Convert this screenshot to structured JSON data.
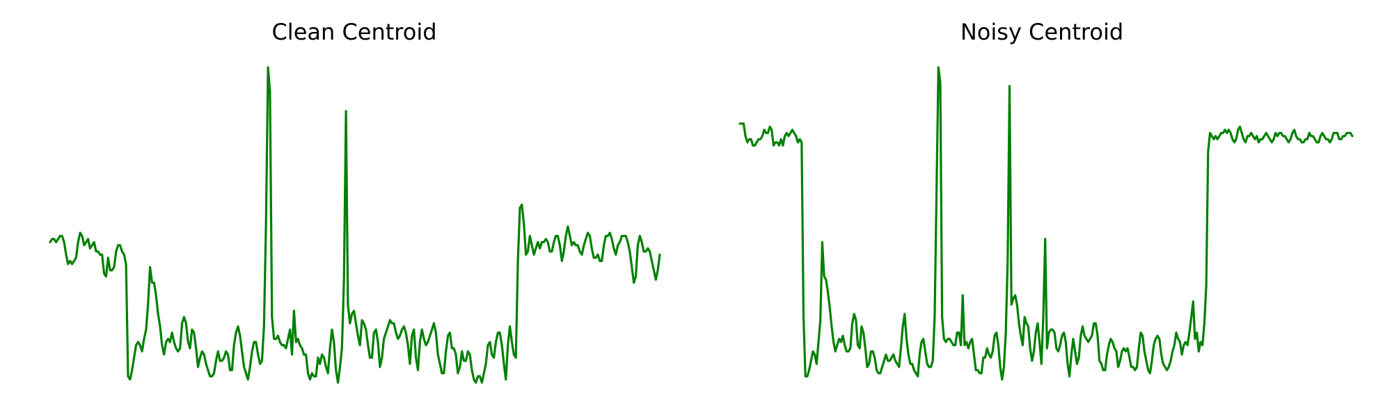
{
  "chart_data": [
    {
      "type": "line",
      "title": "Clean Centroid",
      "axes_visible": false,
      "grid": false,
      "color": "#008000",
      "ylim": [
        0,
        1
      ],
      "y": [
        0.44,
        0.45,
        0.45,
        0.44,
        0.45,
        0.46,
        0.46,
        0.44,
        0.4,
        0.37,
        0.38,
        0.37,
        0.38,
        0.39,
        0.44,
        0.47,
        0.46,
        0.43,
        0.44,
        0.45,
        0.42,
        0.43,
        0.44,
        0.41,
        0.41,
        0.4,
        0.4,
        0.34,
        0.33,
        0.39,
        0.35,
        0.35,
        0.36,
        0.41,
        0.43,
        0.43,
        0.41,
        0.4,
        0.37,
        0.01,
        0.0,
        0.03,
        0.07,
        0.11,
        0.12,
        0.11,
        0.09,
        0.13,
        0.16,
        0.24,
        0.36,
        0.31,
        0.31,
        0.27,
        0.21,
        0.17,
        0.11,
        0.08,
        0.12,
        0.13,
        0.12,
        0.15,
        0.12,
        0.1,
        0.09,
        0.1,
        0.18,
        0.2,
        0.18,
        0.12,
        0.1,
        0.16,
        0.15,
        0.1,
        0.04,
        0.07,
        0.09,
        0.08,
        0.05,
        0.03,
        0.01,
        0.01,
        0.02,
        0.06,
        0.09,
        0.06,
        0.06,
        0.07,
        0.09,
        0.08,
        0.03,
        0.03,
        0.11,
        0.15,
        0.17,
        0.14,
        0.09,
        0.04,
        0.02,
        0.0,
        0.04,
        0.09,
        0.12,
        0.12,
        0.08,
        0.05,
        0.06,
        0.17,
        0.5,
        1.0,
        0.92,
        0.2,
        0.13,
        0.13,
        0.14,
        0.12,
        0.11,
        0.11,
        0.1,
        0.13,
        0.16,
        0.08,
        0.22,
        0.12,
        0.13,
        0.11,
        0.1,
        0.08,
        0.08,
        0.02,
        0.0,
        0.02,
        0.01,
        0.01,
        0.07,
        0.05,
        0.08,
        0.07,
        0.04,
        0.02,
        0.1,
        0.16,
        0.12,
        0.03,
        -0.01,
        0.04,
        0.1,
        0.32,
        0.86,
        0.24,
        0.18,
        0.21,
        0.22,
        0.18,
        0.14,
        0.11,
        0.19,
        0.18,
        0.16,
        0.11,
        0.07,
        0.07,
        0.15,
        0.16,
        0.12,
        0.04,
        0.07,
        0.13,
        0.15,
        0.17,
        0.19,
        0.18,
        0.18,
        0.15,
        0.13,
        0.14,
        0.16,
        0.17,
        0.15,
        0.11,
        0.05,
        0.14,
        0.16,
        0.07,
        0.03,
        0.12,
        0.16,
        0.13,
        0.11,
        0.12,
        0.14,
        0.16,
        0.18,
        0.15,
        0.08,
        0.05,
        0.02,
        0.02,
        0.09,
        0.14,
        0.15,
        0.1,
        0.1,
        0.08,
        0.02,
        0.04,
        0.09,
        0.06,
        0.06,
        0.09,
        0.08,
        0.03,
        0.0,
        -0.01,
        0.01,
        0.01,
        -0.01,
        0.02,
        0.05,
        0.11,
        0.12,
        0.08,
        0.07,
        0.12,
        0.15,
        0.15,
        0.11,
        0.05,
        0.0,
        0.11,
        0.17,
        0.12,
        0.08,
        0.07,
        0.38,
        0.55,
        0.56,
        0.5,
        0.4,
        0.41,
        0.46,
        0.43,
        0.4,
        0.42,
        0.44,
        0.42,
        0.44,
        0.44,
        0.45,
        0.44,
        0.41,
        0.41,
        0.44,
        0.46,
        0.46,
        0.43,
        0.38,
        0.41,
        0.46,
        0.49,
        0.46,
        0.43,
        0.44,
        0.43,
        0.43,
        0.41,
        0.4,
        0.43,
        0.45,
        0.47,
        0.46,
        0.42,
        0.39,
        0.39,
        0.4,
        0.38,
        0.38,
        0.43,
        0.46,
        0.46,
        0.47,
        0.45,
        0.42,
        0.4,
        0.43,
        0.44,
        0.46,
        0.46,
        0.46,
        0.44,
        0.41,
        0.36,
        0.31,
        0.33,
        0.43,
        0.46,
        0.44,
        0.41,
        0.41,
        0.42,
        0.41,
        0.38,
        0.35,
        0.32,
        0.35,
        0.4
      ]
    },
    {
      "type": "line",
      "title": "Noisy Centroid",
      "axes_visible": false,
      "grid": false,
      "color": "#008000",
      "ylim": [
        0,
        1
      ],
      "y": [
        0.82,
        0.82,
        0.82,
        0.78,
        0.76,
        0.77,
        0.77,
        0.75,
        0.75,
        0.76,
        0.77,
        0.77,
        0.78,
        0.8,
        0.79,
        0.79,
        0.81,
        0.8,
        0.75,
        0.76,
        0.76,
        0.75,
        0.77,
        0.75,
        0.78,
        0.79,
        0.78,
        0.79,
        0.8,
        0.79,
        0.78,
        0.76,
        0.77,
        0.76,
        0.2,
        0.01,
        0.01,
        0.03,
        0.06,
        0.09,
        0.08,
        0.05,
        0.12,
        0.19,
        0.44,
        0.33,
        0.32,
        0.28,
        0.23,
        0.17,
        0.12,
        0.09,
        0.11,
        0.13,
        0.12,
        0.14,
        0.11,
        0.09,
        0.09,
        0.1,
        0.18,
        0.21,
        0.19,
        0.11,
        0.1,
        0.17,
        0.15,
        0.1,
        0.04,
        0.05,
        0.09,
        0.09,
        0.07,
        0.03,
        0.02,
        0.02,
        0.04,
        0.06,
        0.08,
        0.06,
        0.06,
        0.07,
        0.08,
        0.06,
        0.05,
        0.04,
        0.1,
        0.17,
        0.21,
        0.13,
        0.08,
        0.05,
        0.05,
        0.03,
        0.02,
        0.01,
        0.08,
        0.12,
        0.13,
        0.09,
        0.05,
        0.04,
        0.04,
        0.06,
        0.2,
        0.6,
        1.0,
        0.95,
        0.2,
        0.13,
        0.12,
        0.13,
        0.13,
        0.12,
        0.11,
        0.11,
        0.15,
        0.15,
        0.11,
        0.27,
        0.11,
        0.12,
        0.1,
        0.12,
        0.13,
        0.08,
        0.03,
        0.03,
        0.02,
        0.02,
        0.07,
        0.07,
        0.1,
        0.08,
        0.07,
        0.09,
        0.14,
        0.15,
        0.11,
        0.04,
        0.0,
        0.04,
        0.15,
        0.38,
        0.94,
        0.24,
        0.26,
        0.27,
        0.24,
        0.18,
        0.14,
        0.11,
        0.2,
        0.18,
        0.17,
        0.1,
        0.06,
        0.09,
        0.15,
        0.18,
        0.12,
        0.05,
        0.2,
        0.45,
        0.1,
        0.15,
        0.16,
        0.16,
        0.15,
        0.1,
        0.09,
        0.11,
        0.14,
        0.15,
        0.12,
        0.05,
        0.01,
        0.08,
        0.13,
        0.09,
        0.05,
        0.07,
        0.14,
        0.17,
        0.14,
        0.13,
        0.12,
        0.13,
        0.14,
        0.18,
        0.18,
        0.14,
        0.06,
        0.05,
        0.03,
        0.03,
        0.08,
        0.11,
        0.13,
        0.12,
        0.1,
        0.09,
        0.04,
        0.06,
        0.09,
        0.1,
        0.09,
        0.1,
        0.07,
        0.04,
        0.04,
        0.03,
        0.04,
        0.1,
        0.15,
        0.14,
        0.09,
        0.06,
        0.03,
        0.02,
        0.06,
        0.11,
        0.13,
        0.14,
        0.13,
        0.08,
        0.05,
        0.04,
        0.03,
        0.04,
        0.06,
        0.09,
        0.11,
        0.15,
        0.13,
        0.12,
        0.08,
        0.11,
        0.12,
        0.11,
        0.15,
        0.2,
        0.25,
        0.13,
        0.15,
        0.09,
        0.12,
        0.11,
        0.18,
        0.3,
        0.73,
        0.79,
        0.78,
        0.77,
        0.78,
        0.77,
        0.78,
        0.79,
        0.79,
        0.8,
        0.79,
        0.8,
        0.79,
        0.77,
        0.76,
        0.77,
        0.8,
        0.81,
        0.79,
        0.77,
        0.76,
        0.78,
        0.78,
        0.79,
        0.78,
        0.77,
        0.78,
        0.76,
        0.77,
        0.77,
        0.78,
        0.79,
        0.78,
        0.77,
        0.76,
        0.77,
        0.79,
        0.78,
        0.79,
        0.79,
        0.78,
        0.78,
        0.77,
        0.76,
        0.77,
        0.79,
        0.8,
        0.78,
        0.77,
        0.77,
        0.76,
        0.76,
        0.77,
        0.77,
        0.79,
        0.78,
        0.78,
        0.77,
        0.76,
        0.76,
        0.78,
        0.79,
        0.78,
        0.77,
        0.77,
        0.76,
        0.77,
        0.79,
        0.79,
        0.79,
        0.77,
        0.77,
        0.78,
        0.78,
        0.79,
        0.79,
        0.79,
        0.78
      ]
    }
  ]
}
